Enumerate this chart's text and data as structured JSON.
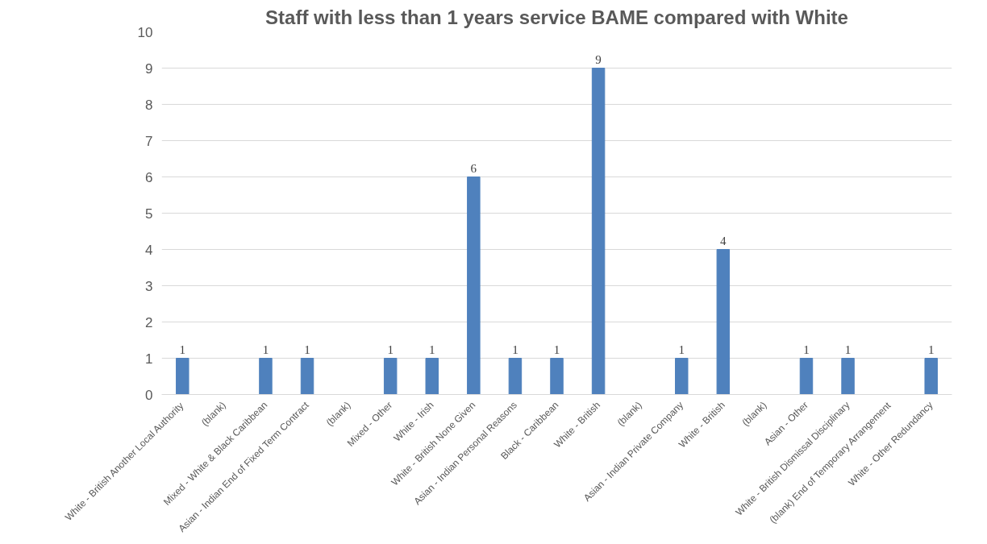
{
  "chart_data": {
    "type": "bar",
    "title": "Staff with less than 1 years service BAME compared with White",
    "categories": [
      "White - British Another Local Authority",
      "(blank)",
      "Mixed - White & Black Caribbean",
      "Asian - Indian End of Fixed Term Contract",
      "(blank)",
      "Mixed - Other",
      "White - Irish",
      "White - British None Given",
      "Asian - Indian Personal Reasons",
      "Black - Caribbean",
      "White - British",
      "(blank)",
      "Asian - Indian Private Company",
      "White - British",
      "(blank)",
      "Asian - Other",
      "White - British Dismissal Disciplinary",
      "(blank) End of Temporary Arrangement",
      "White - Other Redundancy"
    ],
    "values": [
      1,
      null,
      1,
      1,
      null,
      1,
      1,
      6,
      1,
      1,
      9,
      null,
      1,
      4,
      null,
      1,
      1,
      null,
      1
    ],
    "color": "#4f81bd",
    "ylim": [
      0,
      10
    ],
    "yticks": [
      0,
      1,
      2,
      3,
      4,
      5,
      6,
      7,
      8,
      9,
      10
    ],
    "grid": "y",
    "data_labels": true
  }
}
